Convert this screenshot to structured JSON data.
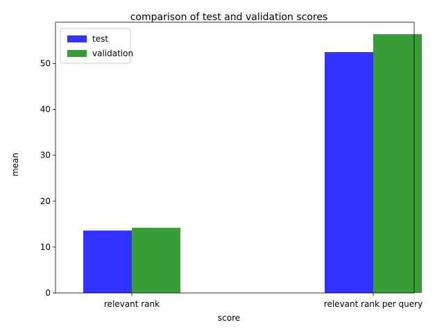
{
  "chart_data": {
    "type": "bar",
    "title": "comparison of test and validation scores",
    "xlabel": "score",
    "ylabel": "mean",
    "categories": [
      "relevant rank",
      "relevant rank per query"
    ],
    "series": [
      {
        "name": "test",
        "values": [
          13.6,
          52.5
        ],
        "color": "#3333ff"
      },
      {
        "name": "validation",
        "values": [
          14.2,
          56.4
        ],
        "color": "#379d37"
      }
    ],
    "ylim": [
      0,
      59
    ],
    "yticks": [
      0,
      10,
      20,
      30,
      40,
      50
    ],
    "grid": false,
    "legend_position": "top-left"
  }
}
